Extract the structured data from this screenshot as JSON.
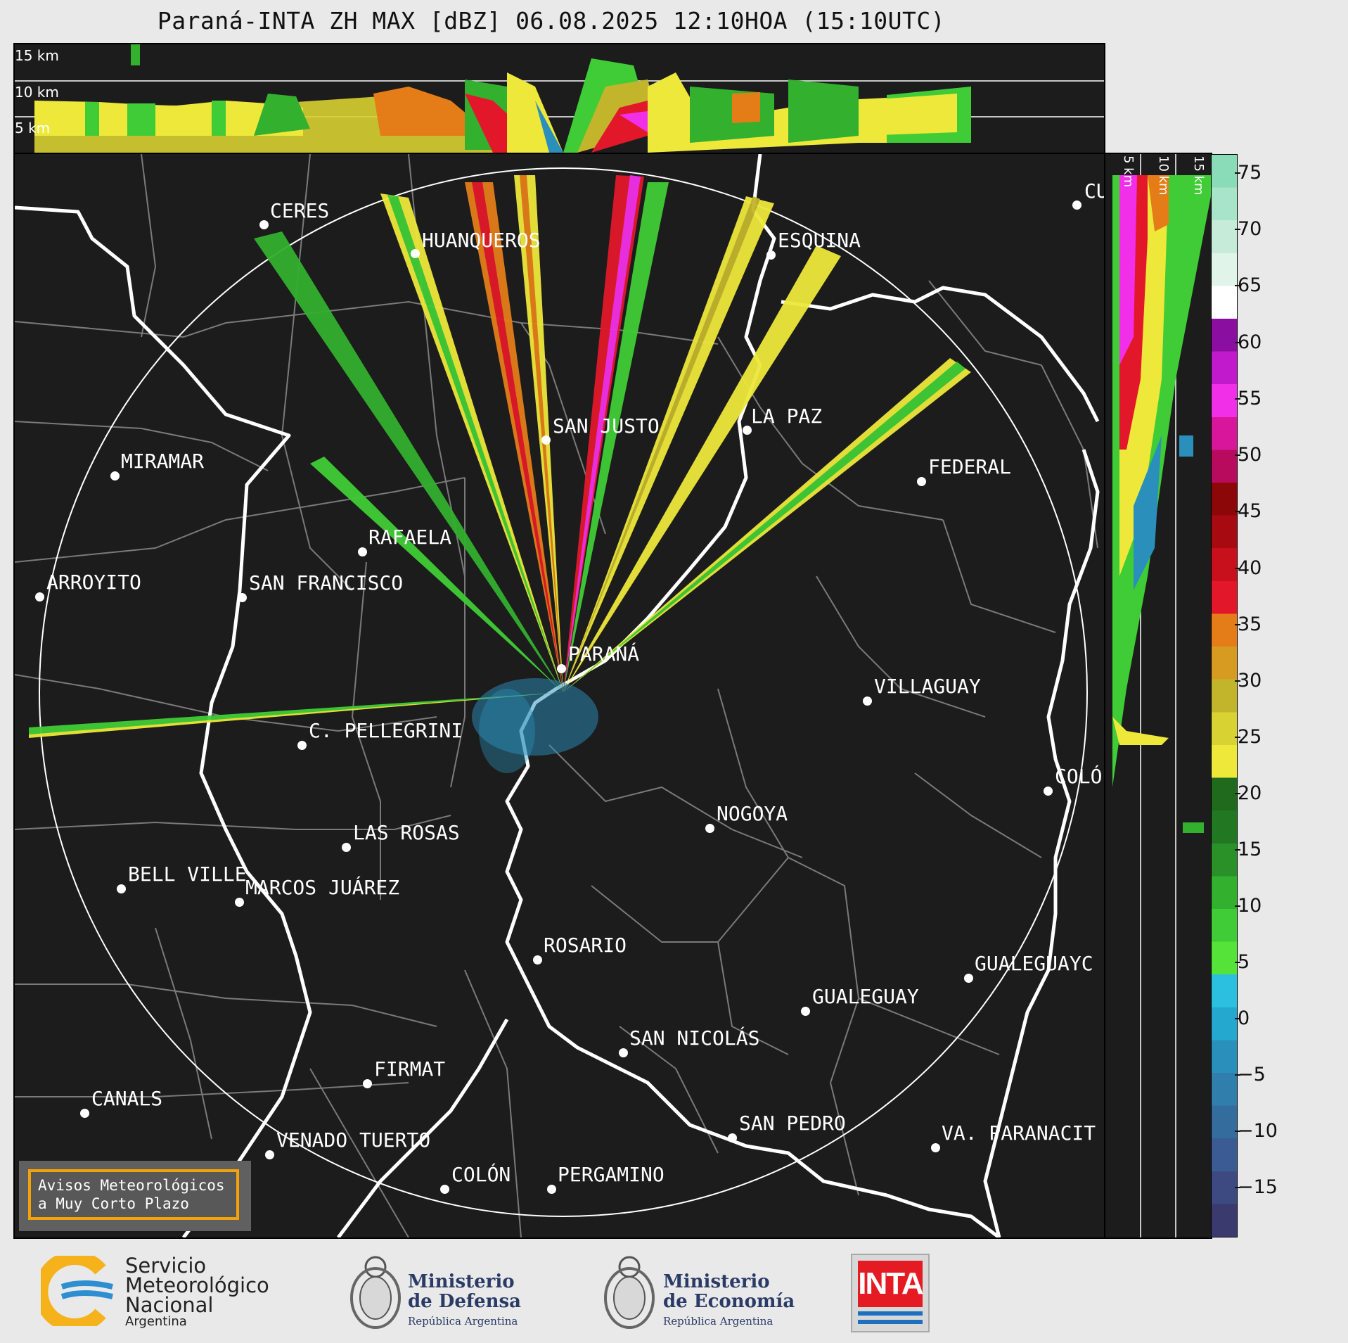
{
  "title": "Paraná-INTA ZH MAX [dBZ] 06.08.2025 12:10HOA (15:10UTC)",
  "top_panel": {
    "labels": [
      "15 km",
      "10 km",
      "5 km"
    ]
  },
  "side_panel": {
    "labels": [
      "5 km",
      "10 km",
      "15 km"
    ]
  },
  "colorbar": {
    "ticks": [
      "75",
      "70",
      "65",
      "60",
      "55",
      "50",
      "45",
      "40",
      "35",
      "30",
      "25",
      "20",
      "15",
      "10",
      "5",
      "0",
      "−5",
      "−10",
      "−15"
    ],
    "colors": [
      "#3b3a6e",
      "#3d4a82",
      "#3b5b94",
      "#356c9e",
      "#2f7eab",
      "#2a90bb",
      "#24a8d0",
      "#2bc0e0",
      "#55e33a",
      "#3fcc36",
      "#33b02e",
      "#2a9128",
      "#217722",
      "#1f6a1d",
      "#ede83a",
      "#d8d232",
      "#c2b52c",
      "#d89b22",
      "#e47d18",
      "#e2182a",
      "#c8101c",
      "#a80a12",
      "#8c0808",
      "#b80b5d",
      "#d8169b",
      "#f22fe8",
      "#c01acc",
      "#8a0fa1",
      "#ffffff",
      "#e0f4ea",
      "#c6ecd9",
      "#a8e4c9",
      "#8adcb9"
    ]
  },
  "cities": [
    {
      "name": "CERES"
    },
    {
      "name": "HUANQUEROS"
    },
    {
      "name": "ESQUINA"
    },
    {
      "name": "CU"
    },
    {
      "name": "SAN JUSTO"
    },
    {
      "name": "LA PAZ"
    },
    {
      "name": "MIRAMAR"
    },
    {
      "name": "FEDERAL"
    },
    {
      "name": "RAFAELA"
    },
    {
      "name": "ARROYITO"
    },
    {
      "name": "SAN FRANCISCO"
    },
    {
      "name": "PARANÁ"
    },
    {
      "name": "VILLAGUAY"
    },
    {
      "name": "C. PELLEGRINI"
    },
    {
      "name": "COLÓ"
    },
    {
      "name": "NOGOYA"
    },
    {
      "name": "LAS ROSAS"
    },
    {
      "name": "BELL VILLE"
    },
    {
      "name": "MARCOS JUÁREZ"
    },
    {
      "name": "ROSARIO"
    },
    {
      "name": "GUALEGUAYC"
    },
    {
      "name": "GUALEGUAY"
    },
    {
      "name": "SAN NICOLÁS"
    },
    {
      "name": "FIRMAT"
    },
    {
      "name": "CANALS"
    },
    {
      "name": "SAN PEDRO"
    },
    {
      "name": "VA. PARANACIT"
    },
    {
      "name": "VENADO TUERTO"
    },
    {
      "name": "COLÓN"
    },
    {
      "name": "PERGAMINO"
    }
  ],
  "avisos": {
    "line1": "Avisos Meteorológicos",
    "line2": "a Muy Corto Plazo"
  },
  "logos": {
    "smn": {
      "line1": "Servicio",
      "line2": "Meteorológico",
      "line3": "Nacional",
      "line4": "Argentina"
    },
    "defensa": {
      "line1": "Ministerio",
      "line2": "de Defensa",
      "line3": "República Argentina"
    },
    "economia": {
      "line1": "Ministerio",
      "line2": "de Economía",
      "line3": "República Argentina"
    },
    "inta": {
      "text": "INTA"
    }
  }
}
